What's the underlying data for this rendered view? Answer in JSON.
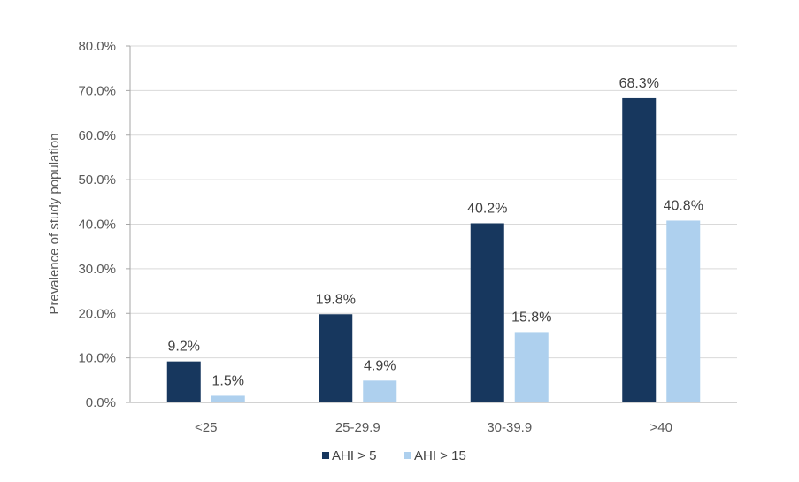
{
  "chart_data": {
    "type": "bar",
    "title": "",
    "xlabel": "",
    "ylabel": "Prevalence of study population",
    "categories": [
      "<25",
      "25-29.9",
      "30-39.9",
      ">40"
    ],
    "series": [
      {
        "name": "AHI > 5",
        "values": [
          9.2,
          19.8,
          40.2,
          68.3
        ],
        "labels": [
          "9.2%",
          "19.8%",
          "40.2%",
          "68.3%"
        ],
        "color": "#17375e"
      },
      {
        "name": "AHI > 15",
        "values": [
          1.5,
          4.9,
          15.8,
          40.8
        ],
        "labels": [
          "1.5%",
          "4.9%",
          "15.8%",
          "40.8%"
        ],
        "color": "#aed0ee"
      }
    ],
    "ylim": [
      0,
      80
    ],
    "yticks": [
      0,
      10,
      20,
      30,
      40,
      50,
      60,
      70,
      80
    ],
    "ytick_labels": [
      "0.0%",
      "10.0%",
      "20.0%",
      "30.0%",
      "40.0%",
      "50.0%",
      "60.0%",
      "70.0%",
      "80.0%"
    ],
    "grid": true,
    "legend_position": "bottom",
    "gridline_color": "#d9d9d9",
    "axis_color": "#a6a6a6"
  }
}
